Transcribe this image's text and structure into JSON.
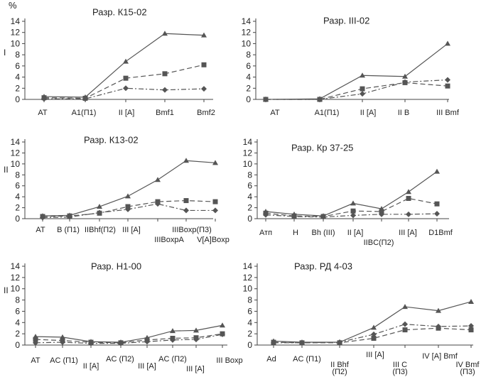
{
  "unit_label": "%",
  "colors": {
    "axis": "#444444",
    "line": "#555555",
    "marker": "#555555",
    "text": "#222222"
  },
  "chart_data": [
    {
      "type": "line",
      "title": "Разр. К15-02",
      "ylabel": "I",
      "ylim": [
        0,
        14
      ],
      "yticks": [
        0,
        2,
        4,
        6,
        8,
        10,
        12,
        14
      ],
      "categories": [
        "AT",
        "A1(П1)",
        "II [A]",
        "Bmf1",
        "Bmf2"
      ],
      "series": [
        {
          "name": "triangle",
          "marker": "triangle",
          "dash": "solid",
          "values": [
            0.5,
            0.4,
            6.8,
            11.8,
            11.5
          ]
        },
        {
          "name": "square",
          "marker": "square",
          "dash": "dashed",
          "values": [
            0.3,
            0.2,
            3.8,
            4.6,
            6.2
          ]
        },
        {
          "name": "diamond",
          "marker": "diamond",
          "dash": "dashdot",
          "values": [
            0.1,
            0.1,
            2.0,
            1.7,
            1.9
          ]
        }
      ]
    },
    {
      "type": "line",
      "title": "Разр. III-02",
      "ylabel": "",
      "ylim": [
        0,
        14
      ],
      "yticks": [
        0,
        2,
        4,
        6,
        8,
        10,
        12,
        14
      ],
      "categories": [
        "AT",
        "A1(П1)",
        "II [A]",
        "II B",
        "III Bmf"
      ],
      "series": [
        {
          "name": "triangle",
          "marker": "triangle",
          "dash": "solid",
          "values": [
            0.0,
            0.1,
            4.3,
            4.1,
            10.0
          ]
        },
        {
          "name": "square",
          "marker": "square",
          "dash": "dashed",
          "values": [
            0.0,
            0.0,
            1.9,
            3.0,
            2.4
          ]
        },
        {
          "name": "diamond",
          "marker": "diamond",
          "dash": "dashdot",
          "values": [
            0.0,
            0.0,
            1.0,
            3.1,
            3.5
          ]
        }
      ]
    },
    {
      "type": "line",
      "title": "Разр. К13-02",
      "ylabel": "II",
      "ylim": [
        0,
        14
      ],
      "yticks": [
        0,
        2,
        4,
        6,
        8,
        10,
        12,
        14
      ],
      "categories": [
        "AT",
        "B (П1)",
        "IIBhf(П2)",
        "III [A]",
        "IIIBoxpA",
        "IIIBoxp(П3)",
        "V[A]Boxp"
      ],
      "series": [
        {
          "name": "triangle",
          "marker": "triangle",
          "dash": "solid",
          "values": [
            0.5,
            0.6,
            2.2,
            4.1,
            7.1,
            10.6,
            10.2
          ]
        },
        {
          "name": "square",
          "marker": "square",
          "dash": "dashed",
          "values": [
            0.4,
            0.5,
            1.0,
            2.2,
            3.1,
            3.3,
            3.1
          ]
        },
        {
          "name": "diamond",
          "marker": "diamond",
          "dash": "dashdot",
          "values": [
            0.2,
            0.3,
            1.1,
            1.7,
            2.7,
            1.5,
            1.5
          ]
        }
      ]
    },
    {
      "type": "line",
      "title": "Разр. Кр 37-25",
      "ylabel": "",
      "ylim": [
        0,
        14
      ],
      "yticks": [
        0,
        2,
        4,
        6,
        8,
        10,
        12,
        14
      ],
      "categories": [
        "Атп",
        "H",
        "Bh (III)",
        "II [A]",
        "IIBC(П2)",
        "III [A]",
        "D1Bmf"
      ],
      "series": [
        {
          "name": "triangle",
          "marker": "triangle",
          "dash": "solid",
          "values": [
            1.3,
            0.8,
            0.5,
            2.8,
            1.8,
            4.9,
            8.6
          ]
        },
        {
          "name": "square",
          "marker": "square",
          "dash": "dashed",
          "values": [
            1.0,
            0.5,
            0.4,
            1.4,
            1.3,
            3.7,
            2.7
          ]
        },
        {
          "name": "diamond",
          "marker": "diamond",
          "dash": "dashdot",
          "values": [
            0.7,
            0.4,
            0.3,
            0.6,
            0.8,
            0.8,
            0.9
          ]
        }
      ]
    },
    {
      "type": "line",
      "title": "Разр. Н1-00",
      "ylabel": "II",
      "ylim": [
        0,
        14
      ],
      "yticks": [
        0,
        2,
        4,
        6,
        8,
        10,
        12,
        14
      ],
      "categories": [
        "AT",
        "AC (П1)",
        "II [A]",
        "AC (П2)",
        "III [A]",
        "AC (П2)",
        "III [A]",
        "III Boxp"
      ],
      "series": [
        {
          "name": "triangle",
          "marker": "triangle",
          "dash": "solid",
          "values": [
            1.5,
            1.4,
            0.6,
            0.5,
            1.3,
            2.5,
            2.6,
            3.5
          ]
        },
        {
          "name": "square",
          "marker": "square",
          "dash": "dashed",
          "values": [
            1.0,
            0.8,
            0.5,
            0.4,
            0.9,
            1.2,
            1.3,
            2.0
          ]
        },
        {
          "name": "diamond",
          "marker": "diamond",
          "dash": "dashdot",
          "values": [
            0.4,
            0.5,
            0.3,
            0.3,
            0.6,
            0.9,
            1.0,
            1.9
          ]
        }
      ]
    },
    {
      "type": "line",
      "title": "Разр. РД 4-03",
      "ylabel": "",
      "ylim": [
        0,
        14
      ],
      "yticks": [
        0,
        2,
        4,
        6,
        8,
        10,
        12,
        14
      ],
      "categories": [
        "Ad",
        "AC (П1)",
        "II Bhf (П2)",
        "III [A]",
        "III C (П3)",
        "IV [A] Bmf",
        "IV Bmf (П3)"
      ],
      "series": [
        {
          "name": "triangle",
          "marker": "triangle",
          "dash": "solid",
          "values": [
            0.7,
            0.5,
            0.5,
            3.1,
            6.8,
            6.1,
            7.7
          ]
        },
        {
          "name": "square",
          "marker": "square",
          "dash": "dashed",
          "values": [
            0.5,
            0.4,
            0.4,
            1.2,
            2.7,
            3.0,
            2.7
          ]
        },
        {
          "name": "diamond",
          "marker": "diamond",
          "dash": "dashdot",
          "values": [
            0.4,
            0.4,
            0.5,
            1.9,
            3.7,
            3.3,
            3.4
          ]
        }
      ]
    }
  ]
}
